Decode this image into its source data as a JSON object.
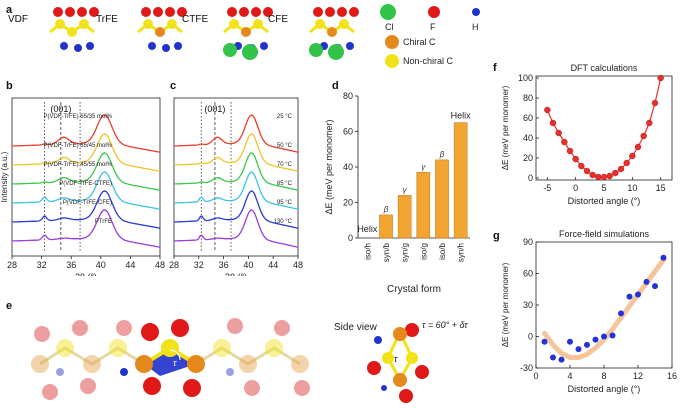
{
  "panels": {
    "a": {
      "label": "a",
      "polymers": [
        "VDF",
        "TrFE",
        "CTFE",
        "CFE"
      ],
      "legend": {
        "cl": "Cl",
        "f": "F",
        "h": "H",
        "chiral": "Chiral C",
        "nonchiral": "Non-chiral C"
      },
      "colors": {
        "cl": "#33c24a",
        "f": "#e01818",
        "h": "#2233cc",
        "chiral": "#e6891c",
        "nonchiral": "#f2e21a"
      }
    },
    "b": {
      "label": "b",
      "peak_label": "(001)",
      "ylabel": "Intensity (a.u.)",
      "xlabel": "2θ (°)",
      "xticks": [
        "28",
        "32",
        "36",
        "40",
        "44",
        "48"
      ],
      "curves": [
        {
          "name": "P(VDF-TrFE) 65/35 mol%",
          "color": "#e8402a"
        },
        {
          "name": "P(VDF-TrFE) 55/45 mol%",
          "color": "#f0c428"
        },
        {
          "name": "P(VDF-TrFE) 45/55 mol%",
          "color": "#3cc84a"
        },
        {
          "name": "P(VDF-TrFE-CTFE)",
          "color": "#3cc4e8"
        },
        {
          "name": "P(VDF-TrFE-CFE)",
          "color": "#2a3cd8"
        },
        {
          "name": "PTrFE",
          "color": "#9a3ce0"
        }
      ]
    },
    "c": {
      "label": "c",
      "peak_label": "(001)",
      "xlabel": "2θ (°)",
      "xticks": [
        "28",
        "32",
        "36",
        "40",
        "44",
        "48"
      ],
      "curves": [
        {
          "name": "25 °C",
          "color": "#e8402a"
        },
        {
          "name": "50 °C",
          "color": "#f0c428"
        },
        {
          "name": "70 °C",
          "color": "#3cc84a"
        },
        {
          "name": "85 °C",
          "color": "#3cc4e8"
        },
        {
          "name": "95 °C",
          "color": "#2a3cd8"
        },
        {
          "name": "130 °C",
          "color": "#9a3ce0"
        }
      ]
    },
    "d": {
      "label": "d"
    },
    "e": {
      "label": "e",
      "side_view": "Side view",
      "tau_eq": "τ = 60° + δτ",
      "tau": "τ"
    },
    "f": {
      "label": "f"
    },
    "g": {
      "label": "g"
    }
  },
  "chart_data": [
    {
      "type": "bar",
      "panel": "d",
      "title": "",
      "xlabel": "Crystal form",
      "ylabel": "ΔE (meV per monomer)",
      "categories": [
        "iso/h",
        "syn/b",
        "syn/g",
        "iso/g",
        "iso/b",
        "syn/h"
      ],
      "values": [
        0,
        13,
        24,
        37,
        44,
        65
      ],
      "bar_labels": [
        "",
        "β",
        "γ",
        "γ",
        "β",
        ""
      ],
      "annotations": [
        "Helix",
        "Helix"
      ],
      "ylim": [
        0,
        80
      ],
      "yticks": [
        0,
        20,
        40,
        60,
        80
      ],
      "bar_color": "#f3a532"
    },
    {
      "type": "line",
      "panel": "f",
      "title": "DFT calculations",
      "xlabel": "Distorted angle (°)",
      "ylabel": "ΔE (meV per monomer)",
      "x": [
        -5,
        -4,
        -3,
        -2,
        -1,
        0,
        1,
        2,
        3,
        4,
        5,
        6,
        7,
        8,
        9,
        10,
        11,
        12,
        13,
        14,
        15
      ],
      "y": [
        68,
        55,
        45,
        36,
        27,
        19,
        12,
        7,
        3,
        1,
        1,
        2,
        5,
        9,
        15,
        22,
        31,
        42,
        55,
        75,
        100
      ],
      "xlim": [
        -7,
        17
      ],
      "ylim": [
        -2,
        102
      ],
      "xticks": [
        -5,
        0,
        5,
        10,
        15
      ],
      "yticks": [
        0,
        20,
        40,
        60,
        80,
        100
      ],
      "color": "#e8302a"
    },
    {
      "type": "scatter",
      "panel": "g",
      "title": "Force-field simulations",
      "xlabel": "Distorted angle (°)",
      "ylabel": "ΔE (meV per monomer)",
      "x": [
        1,
        2,
        3,
        4,
        5,
        6,
        7,
        8,
        9,
        10,
        11,
        12,
        13,
        14,
        15
      ],
      "y": [
        -5,
        -20,
        -22,
        -5,
        -12,
        -8,
        -3,
        0,
        1,
        22,
        38,
        40,
        52,
        48,
        75
      ],
      "fit_x": [
        1,
        2,
        3,
        4,
        5,
        6,
        7,
        8,
        9,
        10,
        11,
        12,
        13,
        14,
        15
      ],
      "fit_y": [
        3,
        -8,
        -16,
        -20,
        -20,
        -17,
        -11,
        -3,
        7,
        18,
        29,
        40,
        51,
        62,
        73
      ],
      "xlim": [
        0,
        16
      ],
      "ylim": [
        -30,
        90
      ],
      "xticks": [
        0,
        4,
        8,
        12,
        16
      ],
      "yticks": [
        -30,
        0,
        30,
        60,
        90
      ],
      "color": "#2233dd",
      "fit_color": "#f6c49a"
    }
  ]
}
